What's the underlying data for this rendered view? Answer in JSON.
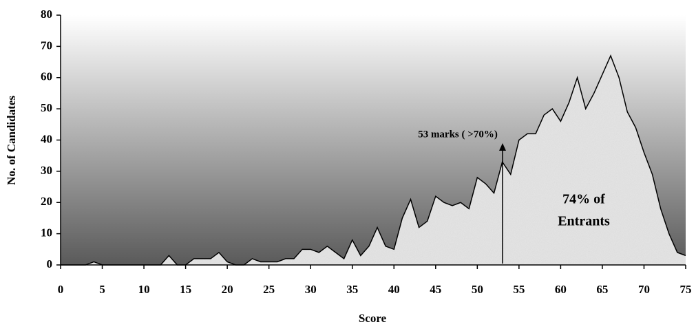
{
  "chart_data": {
    "type": "area",
    "x": [
      0,
      1,
      2,
      3,
      4,
      5,
      6,
      7,
      8,
      9,
      10,
      11,
      12,
      13,
      14,
      15,
      16,
      17,
      18,
      19,
      20,
      21,
      22,
      23,
      24,
      25,
      26,
      27,
      28,
      29,
      30,
      31,
      32,
      33,
      34,
      35,
      36,
      37,
      38,
      39,
      40,
      41,
      42,
      43,
      44,
      45,
      46,
      47,
      48,
      49,
      50,
      51,
      52,
      53,
      54,
      55,
      56,
      57,
      58,
      59,
      60,
      61,
      62,
      63,
      64,
      65,
      66,
      67,
      68,
      69,
      70,
      71,
      72,
      73,
      74,
      75
    ],
    "values": [
      0,
      0,
      0,
      0,
      1,
      0,
      0,
      0,
      0,
      0,
      0,
      0,
      0,
      3,
      0,
      0,
      2,
      2,
      2,
      4,
      1,
      0,
      0,
      2,
      1,
      1,
      1,
      2,
      2,
      5,
      5,
      4,
      6,
      4,
      2,
      8,
      3,
      6,
      12,
      6,
      5,
      15,
      21,
      12,
      14,
      22,
      20,
      19,
      20,
      18,
      28,
      26,
      23,
      33,
      29,
      40,
      42,
      42,
      48,
      50,
      46,
      52,
      60,
      50,
      55,
      61,
      67,
      60,
      49,
      44,
      36,
      29,
      18,
      10,
      4,
      3
    ],
    "xlabel": "Score",
    "ylabel": "No. of Candidates",
    "xlim": [
      0,
      75
    ],
    "xticks": [
      0,
      5,
      10,
      15,
      20,
      25,
      30,
      35,
      40,
      45,
      50,
      55,
      60,
      65,
      70,
      75
    ],
    "ylim": [
      0,
      80
    ],
    "yticks": [
      0,
      10,
      20,
      30,
      40,
      50,
      60,
      70,
      80
    ],
    "color": "#e4e4e4",
    "line_color": "#000000",
    "annotations": [
      "53 marks ( >70%)",
      "74% of",
      "Entrants"
    ]
  }
}
